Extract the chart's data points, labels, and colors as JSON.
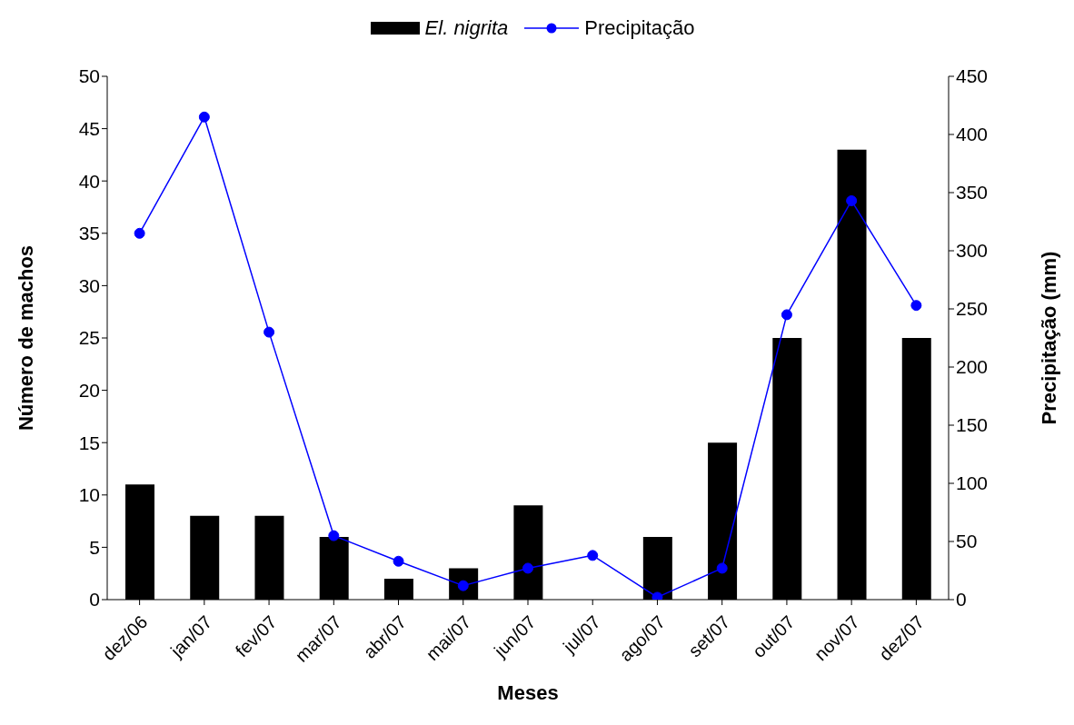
{
  "chart_data": {
    "type": "bar",
    "xlabel": "Meses",
    "ylabel": "Número de machos",
    "y2label": "Precipitação (mm)",
    "categories": [
      "dez/06",
      "jan/07",
      "fev/07",
      "mar/07",
      "abr/07",
      "mai/07",
      "jun/07",
      "jul/07",
      "ago/07",
      "set/07",
      "out/07",
      "nov/07",
      "dez/07"
    ],
    "series": [
      {
        "name": "El. nigrita",
        "color": "#000000",
        "values": [
          11,
          8,
          8,
          6,
          2,
          3,
          9,
          0,
          6,
          15,
          25,
          43,
          25
        ]
      },
      {
        "name": "Precipitação",
        "type": "line",
        "axis": "y2",
        "color": "#0000ff",
        "values": [
          315,
          415,
          230,
          55,
          33,
          12,
          27,
          38,
          2,
          27,
          245,
          343,
          253
        ]
      }
    ],
    "ylim": [
      0,
      50
    ],
    "yticks": [
      0,
      5,
      10,
      15,
      20,
      25,
      30,
      35,
      40,
      45,
      50
    ],
    "y2lim": [
      0,
      450
    ],
    "y2ticks": [
      0,
      50,
      100,
      150,
      200,
      250,
      300,
      350,
      400,
      450
    ],
    "legend": "top",
    "grid": false,
    "marker": "circle",
    "line_style": "solid"
  }
}
